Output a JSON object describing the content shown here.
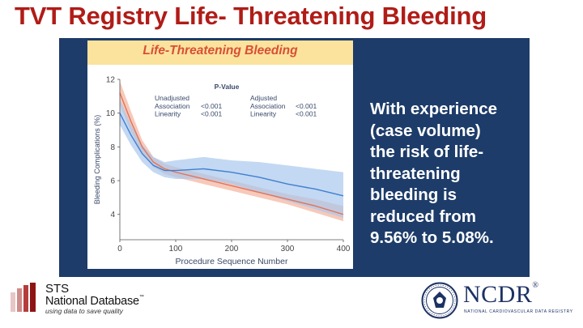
{
  "slide": {
    "title": "TVT Registry Life- Threatening Bleeding",
    "callout_lines": [
      "With experience",
      "(case volume)",
      "the risk of life-",
      "threatening",
      "bleeding is",
      "reduced from",
      "9.56% to 5.08%."
    ]
  },
  "colors": {
    "title": "#b01c17",
    "panel": "#1d3c69",
    "banner": "#fbe39d",
    "figure_title": "#d94f35",
    "unadjusted_line": "#e1735a",
    "unadjusted_band": "#f4b7a2",
    "adjusted_line": "#3f7fd0",
    "adjusted_band": "#a9c8ec"
  },
  "chart_data": {
    "type": "line",
    "title": "Life-Threatening Bleeding",
    "xlabel": "Procedure Sequence Number",
    "ylabel": "Bleeding Complications (%)",
    "xlim": [
      0,
      400
    ],
    "ylim": [
      2.5,
      12
    ],
    "xticks": [
      0,
      100,
      200,
      300,
      400
    ],
    "yticks": [
      4,
      6,
      8,
      10,
      12
    ],
    "series": [
      {
        "name": "Unadjusted",
        "x": [
          0,
          20,
          40,
          60,
          80,
          100,
          150,
          200,
          250,
          300,
          350,
          400
        ],
        "y": [
          11.2,
          9.5,
          8.0,
          7.1,
          6.7,
          6.5,
          6.1,
          5.7,
          5.3,
          4.9,
          4.5,
          4.0
        ],
        "lower": [
          10.5,
          8.9,
          7.6,
          6.8,
          6.4,
          6.2,
          5.8,
          5.4,
          5.0,
          4.6,
          4.1,
          3.6
        ],
        "upper": [
          11.9,
          10.1,
          8.4,
          7.4,
          7.0,
          6.8,
          6.4,
          6.0,
          5.6,
          5.2,
          4.9,
          4.5
        ]
      },
      {
        "name": "Adjusted",
        "x": [
          0,
          20,
          40,
          60,
          80,
          100,
          150,
          200,
          250,
          300,
          350,
          400
        ],
        "y": [
          10.0,
          8.7,
          7.6,
          6.9,
          6.6,
          6.6,
          6.7,
          6.5,
          6.2,
          5.8,
          5.5,
          5.1
        ],
        "lower": [
          9.3,
          8.1,
          7.1,
          6.5,
          6.2,
          6.1,
          6.1,
          5.8,
          5.3,
          4.8,
          4.3,
          3.8
        ],
        "upper": [
          10.8,
          9.3,
          8.1,
          7.4,
          7.1,
          7.2,
          7.4,
          7.2,
          7.1,
          6.9,
          6.7,
          6.5
        ]
      }
    ],
    "pvalue_table": {
      "header": "P-Value",
      "groups": [
        {
          "name": "Unadjusted",
          "rows": [
            {
              "label": "Association",
              "value": "<0.001"
            },
            {
              "label": "Linearity",
              "value": "<0.001"
            }
          ]
        },
        {
          "name": "Adjusted",
          "rows": [
            {
              "label": "Association",
              "value": "<0.001"
            },
            {
              "label": "Linearity",
              "value": "<0.001"
            }
          ]
        }
      ]
    }
  },
  "logos": {
    "sts": {
      "line1": "STS",
      "line2": "National Database",
      "tm": "™",
      "tagline": "using data to save quality"
    },
    "ncdr": {
      "name": "NCDR",
      "reg": "®",
      "tagline": "NATIONAL CARDIOVASCULAR DATA REGISTRY"
    }
  }
}
